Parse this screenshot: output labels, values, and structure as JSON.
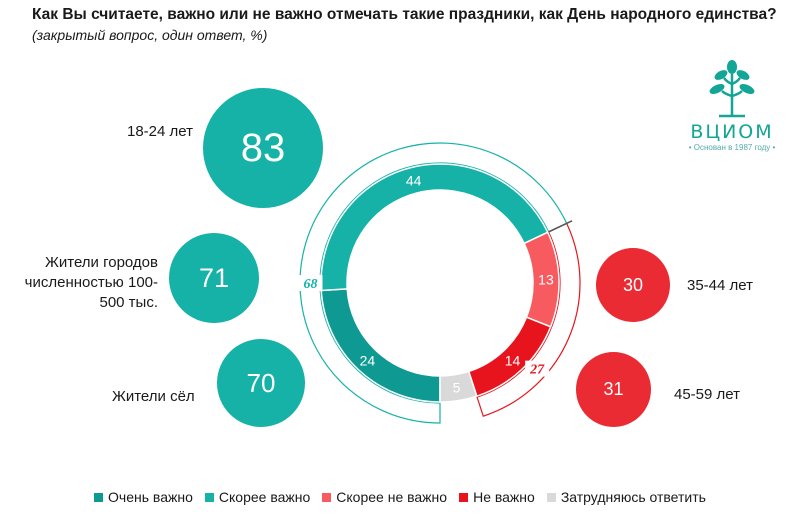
{
  "title": "Как Вы считаете, важно или не важно отмечать такие праздники, как День народного единства?",
  "subtitle": "(закрытый вопрос, один ответ, %)",
  "logo": {
    "name": "ВЦИОМ",
    "tagline": "• Основан в 1987 году •"
  },
  "colors": {
    "very_important": "#0e9a93",
    "rather_important": "#16b2a7",
    "rather_not": "#f75b5f",
    "not_important": "#e8141d",
    "hard_to_say": "#d9d9d9"
  },
  "bubbles_left": [
    {
      "value": "83",
      "label": "18-24 лет"
    },
    {
      "value": "71",
      "label": "Жители городов численностью 100-500 тыс."
    },
    {
      "value": "70",
      "label": "Жители сёл"
    }
  ],
  "bubbles_right": [
    {
      "value": "30",
      "label": "35-44 лет"
    },
    {
      "value": "31",
      "label": "45-59 лет"
    }
  ],
  "chart_data": {
    "type": "pie",
    "title": "Как Вы считаете, важно или не важно отмечать такие праздники, как День народного единства?",
    "categories": [
      "Очень важно",
      "Скорее важно",
      "Скорее не важно",
      "Не важно",
      "Затрудняюсь ответить"
    ],
    "values": [
      24,
      44,
      13,
      14,
      5
    ],
    "totals": {
      "important": 68,
      "not_important": 27
    },
    "legend_position": "bottom"
  }
}
